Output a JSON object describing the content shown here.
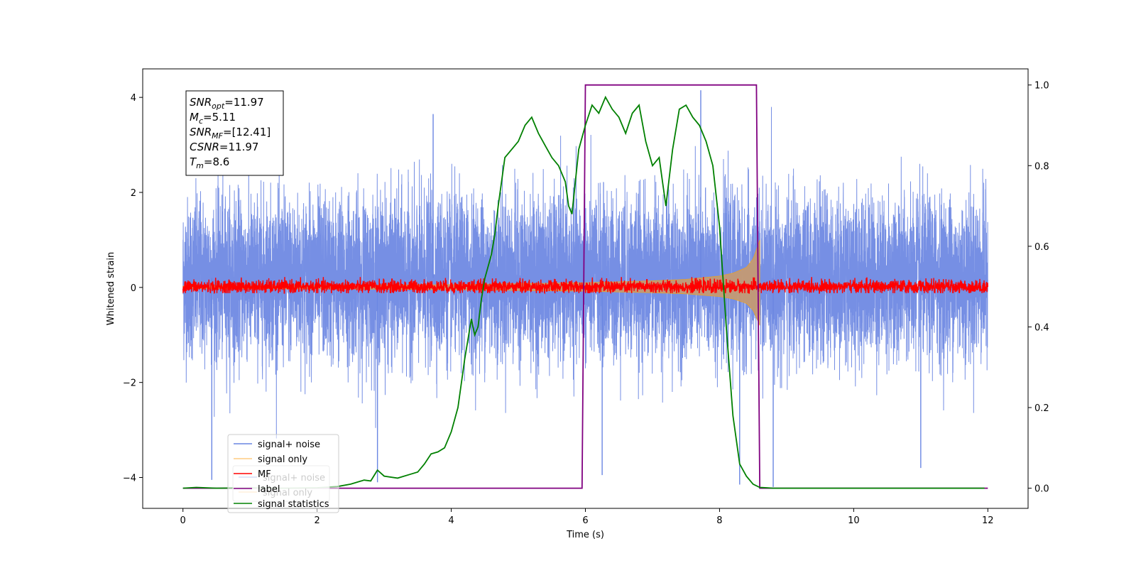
{
  "chart_data": {
    "type": "line",
    "xlabel": "Time (s)",
    "ylabel": "Whitened strain",
    "xlim": [
      -0.6,
      12.6
    ],
    "ylim": [
      -4.65,
      4.6
    ],
    "y2lim": [
      -0.05,
      1.04
    ],
    "x_ticks": [
      0,
      2,
      4,
      6,
      8,
      10,
      12
    ],
    "y_ticks": [
      -4,
      -2,
      0,
      2,
      4
    ],
    "y2_ticks": [
      0.0,
      0.2,
      0.4,
      0.6,
      0.8,
      1.0
    ],
    "x_tick_labels": [
      "0",
      "2",
      "4",
      "6",
      "8",
      "10",
      "12"
    ],
    "y_tick_labels": [
      "−4",
      "−2",
      "0",
      "2",
      "4"
    ],
    "y2_tick_labels": [
      "0.0",
      "0.2",
      "0.4",
      "0.6",
      "0.8",
      "1.0"
    ],
    "annotation": [
      {
        "symbol": "SNR",
        "sub": "opt",
        "value": "=11.97"
      },
      {
        "symbol": "M",
        "sub": "c",
        "value": "=5.11"
      },
      {
        "symbol": "SNR",
        "sub": "MF",
        "value": "=[12.41]"
      },
      {
        "symbol": "CSNR",
        "sub": "",
        "value": "=11.97"
      },
      {
        "symbol": "T",
        "sub": "m",
        "value": "=8.6"
      }
    ],
    "legend_position": "lower-left",
    "legend_entries": [
      "signal+ noise",
      "signal only",
      "MF",
      "label",
      "signal statistics"
    ],
    "legend_ghost_entries": [
      "signal+ noise",
      "signal only"
    ],
    "colors": {
      "noise": "#6a86e2",
      "signal": "#ffa500",
      "signal_fill": "#c49a74",
      "mf": "#ff0000",
      "label": "#800080",
      "stats": "#008000"
    },
    "noise_series": {
      "name": "signal+ noise",
      "x_range": [
        0,
        12
      ],
      "typical_band": [
        -1.8,
        2.2
      ],
      "peak_range": [
        -4.1,
        4.15
      ],
      "notable_spikes": [
        [
          0.43,
          -4.05
        ],
        [
          2.9,
          -4.1
        ],
        [
          3.73,
          3.65
        ],
        [
          6.25,
          -3.95
        ],
        [
          7.72,
          4.15
        ],
        [
          8.3,
          -4.15
        ],
        [
          8.8,
          -4.2
        ],
        [
          11.0,
          -3.8
        ]
      ]
    },
    "signal_series": {
      "name": "signal only",
      "x": [
        0,
        1,
        2,
        3,
        4,
        5,
        6,
        7,
        7.5,
        8,
        8.2,
        8.4,
        8.5,
        8.6
      ],
      "envelope": [
        0.03,
        0.035,
        0.04,
        0.05,
        0.06,
        0.08,
        0.1,
        0.14,
        0.17,
        0.24,
        0.3,
        0.42,
        0.6,
        1.0
      ]
    },
    "mf_series": {
      "name": "MF",
      "x_range": [
        0,
        12
      ],
      "band": [
        -0.12,
        0.22
      ]
    },
    "label_series": {
      "name": "label",
      "x": [
        0,
        5.95,
        6.0,
        8.55,
        8.6,
        12
      ],
      "y": [
        0,
        0,
        1,
        1,
        0,
        0
      ]
    },
    "stats_series": {
      "name": "signal statistics",
      "x": [
        0.0,
        0.2,
        0.5,
        1.0,
        1.5,
        2.0,
        2.3,
        2.5,
        2.7,
        2.8,
        2.9,
        3.0,
        3.2,
        3.4,
        3.5,
        3.6,
        3.7,
        3.8,
        3.9,
        4.0,
        4.1,
        4.2,
        4.3,
        4.35,
        4.4,
        4.45,
        4.5,
        4.55,
        4.6,
        4.65,
        4.7,
        4.75,
        4.8,
        4.9,
        5.0,
        5.1,
        5.2,
        5.3,
        5.4,
        5.5,
        5.6,
        5.7,
        5.75,
        5.8,
        5.9,
        6.0,
        6.1,
        6.2,
        6.3,
        6.4,
        6.5,
        6.6,
        6.7,
        6.8,
        6.9,
        7.0,
        7.1,
        7.15,
        7.2,
        7.3,
        7.4,
        7.5,
        7.6,
        7.7,
        7.75,
        7.8,
        7.9,
        8.0,
        8.1,
        8.2,
        8.3,
        8.4,
        8.5,
        8.6,
        8.7,
        8.8,
        9.0,
        10.0,
        11.0,
        11.95
      ],
      "y": [
        0.0,
        0.002,
        0.0,
        0.001,
        0.0,
        0.001,
        0.004,
        0.01,
        0.02,
        0.018,
        0.045,
        0.03,
        0.025,
        0.035,
        0.04,
        0.06,
        0.085,
        0.09,
        0.1,
        0.14,
        0.2,
        0.32,
        0.42,
        0.38,
        0.4,
        0.47,
        0.52,
        0.55,
        0.58,
        0.63,
        0.7,
        0.76,
        0.82,
        0.84,
        0.86,
        0.9,
        0.92,
        0.88,
        0.85,
        0.82,
        0.8,
        0.76,
        0.7,
        0.68,
        0.84,
        0.9,
        0.95,
        0.93,
        0.97,
        0.94,
        0.92,
        0.88,
        0.93,
        0.95,
        0.86,
        0.8,
        0.82,
        0.76,
        0.7,
        0.84,
        0.94,
        0.95,
        0.92,
        0.9,
        0.88,
        0.86,
        0.8,
        0.65,
        0.4,
        0.18,
        0.06,
        0.03,
        0.01,
        0.002,
        0.001,
        0.0,
        0.0,
        0.0,
        0.0,
        0.0
      ]
    }
  }
}
